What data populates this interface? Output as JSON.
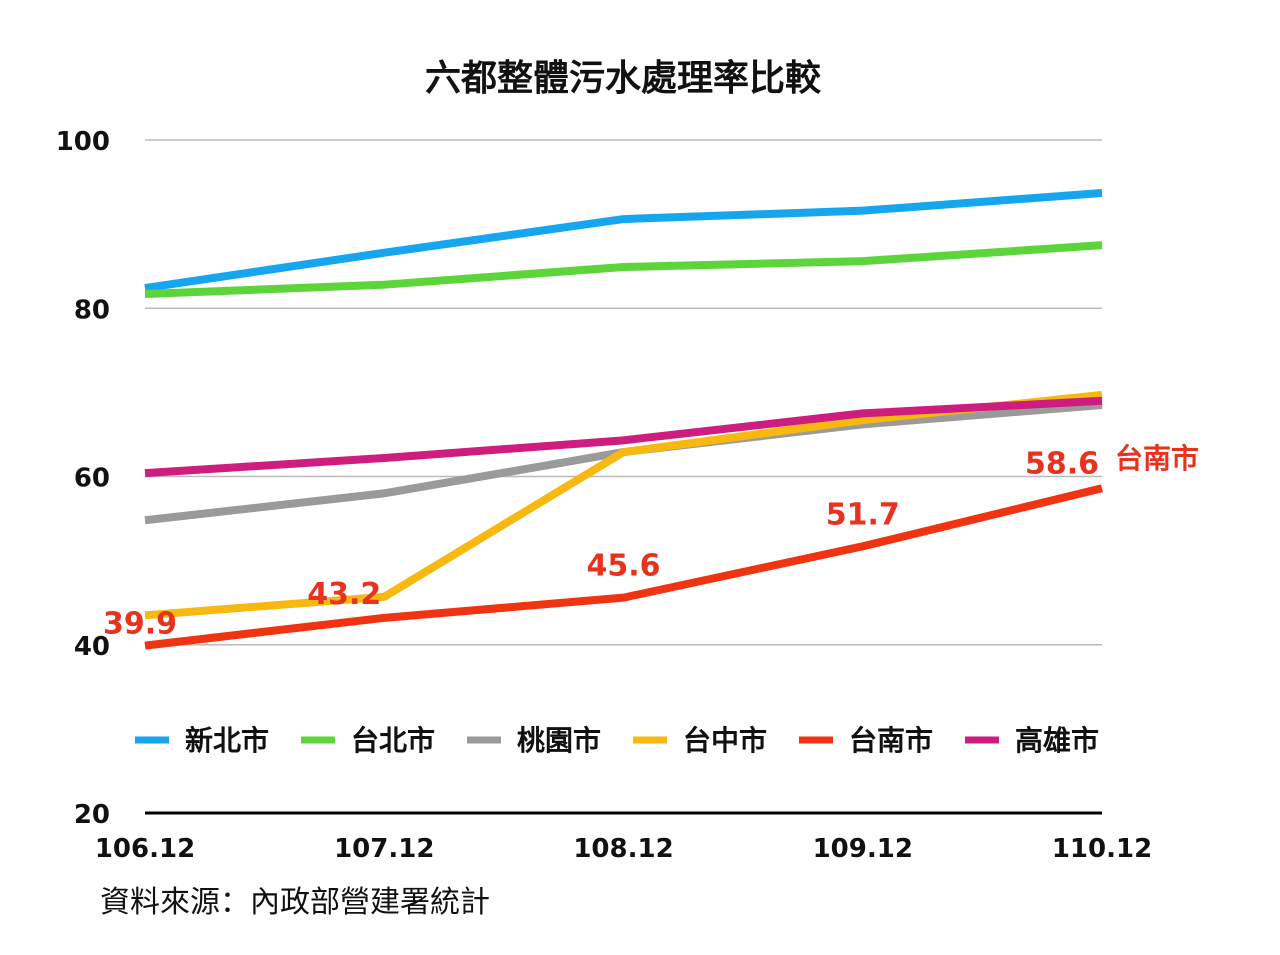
{
  "chart_data": {
    "type": "line",
    "title": "六都整體污水處理率比較",
    "xlabel": "",
    "ylabel": "",
    "categories": [
      "106.12",
      "107.12",
      "108.12",
      "109.12",
      "110.12"
    ],
    "ylim": [
      20,
      100
    ],
    "yticks": [
      "20",
      "40",
      "60",
      "80",
      "100"
    ],
    "grid": true,
    "legend_position": "bottom-inside",
    "series": [
      {
        "name": "新北市",
        "color": "#16a6f0",
        "values": [
          82.4,
          86.6,
          90.6,
          91.6,
          93.7
        ]
      },
      {
        "name": "台北市",
        "color": "#5cd43a",
        "values": [
          81.7,
          82.8,
          84.9,
          85.6,
          87.5
        ]
      },
      {
        "name": "桃園市",
        "color": "#9a9a9a",
        "values": [
          54.8,
          58.0,
          62.9,
          66.2,
          68.5
        ]
      },
      {
        "name": "台中市",
        "color": "#f7b90f",
        "values": [
          43.5,
          45.7,
          62.9,
          66.7,
          69.7
        ]
      },
      {
        "name": "台南市",
        "color": "#f03412",
        "values": [
          39.9,
          43.2,
          45.6,
          51.7,
          58.6
        ]
      },
      {
        "name": "高雄市",
        "color": "#cf1c7f",
        "values": [
          60.4,
          62.2,
          64.3,
          67.5,
          69.0
        ]
      }
    ],
    "data_labels": {
      "series": "台南市",
      "values": [
        "39.9",
        "43.2",
        "45.6",
        "51.7",
        "58.6"
      ],
      "color": "#e8321e"
    },
    "end_annotation": "台南市",
    "source": "資料來源：內政部營建署統計"
  }
}
